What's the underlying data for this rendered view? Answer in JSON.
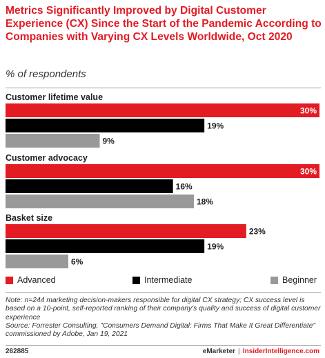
{
  "header": {
    "title": "Metrics Significantly Improved by Digital Customer Experience (CX) Since the Start of the Pandemic According to Companies with Varying CX Levels Worldwide, Oct 2020",
    "subtitle": "% of respondents"
  },
  "chart_data": {
    "type": "bar",
    "orientation": "horizontal",
    "categories": [
      "Customer lifetime value",
      "Customer advocacy",
      "Basket size"
    ],
    "series": [
      {
        "name": "Advanced",
        "color": "#e31b23",
        "values": [
          30,
          30,
          23
        ]
      },
      {
        "name": "Intermediate",
        "color": "#000000",
        "values": [
          19,
          16,
          19
        ]
      },
      {
        "name": "Beginner",
        "color": "#999999",
        "values": [
          9,
          18,
          6
        ]
      }
    ],
    "value_suffix": "%",
    "xlim": [
      0,
      30
    ],
    "legend": "bottom",
    "grid": false
  },
  "notes": {
    "note": "Note: n=244 marketing decision-makers responsible for digital CX strategy; CX success level is based on a 10-point, self-reported ranking of their company's quality and success of digital customer experience",
    "source": "Source: Forrester Consulting, \"Consumers Demand Digital: Firms That Make It Great Differentiate\" commissioned by Adobe, Jan 19, 2021"
  },
  "footer": {
    "chart_id": "262885",
    "brand1": "eMarketer",
    "separator": "|",
    "brand2": "InsiderIntelligence.com"
  }
}
